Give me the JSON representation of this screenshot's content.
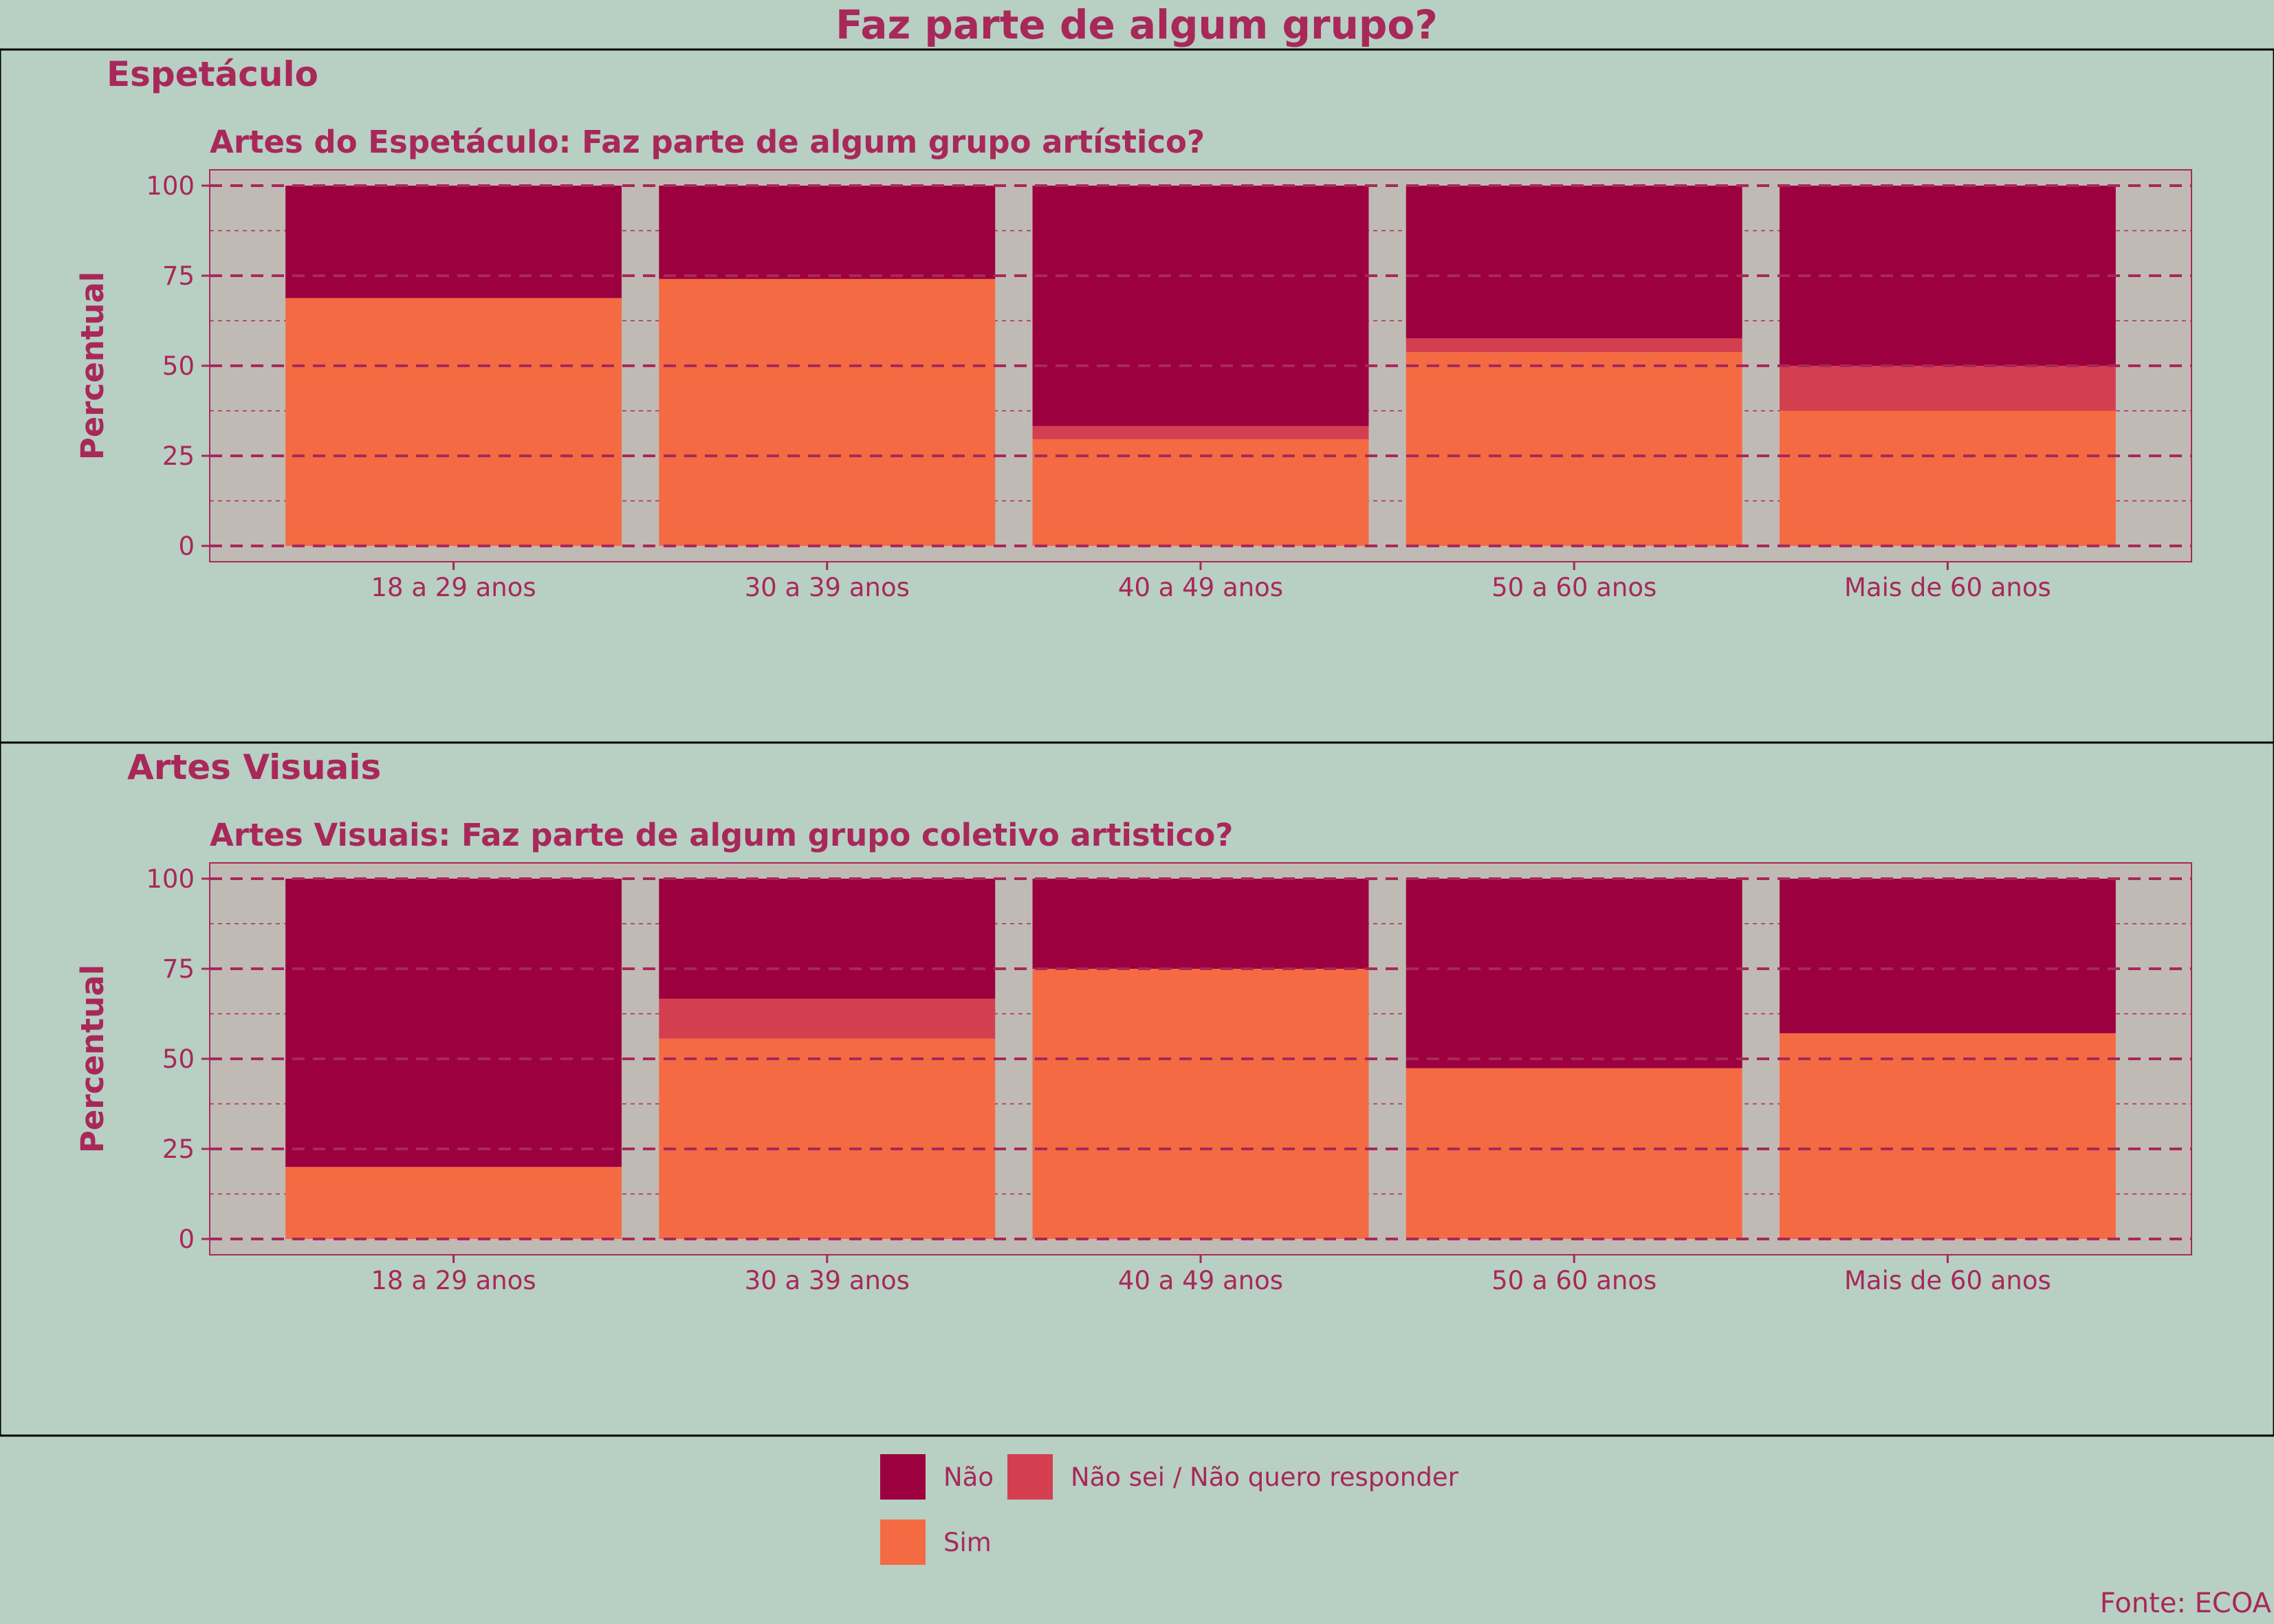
{
  "title": "Faz parte de algum grupo?",
  "source": "Fonte: ECOA",
  "colors": {
    "background": "#b8cfc4",
    "plot_background": "#c0bab5",
    "text": "#a8285a",
    "grid": "#a8285a",
    "nao": "#9c003e",
    "nao_sei": "#d43f50",
    "sim": "#f46b43"
  },
  "legend": {
    "position": "bottom",
    "items": [
      {
        "key": "nao",
        "label": "Não"
      },
      {
        "key": "nao_sei",
        "label": "Não sei / Não quero responder"
      },
      {
        "key": "sim",
        "label": "Sim"
      }
    ]
  },
  "chart_data": [
    {
      "type": "bar",
      "stacked": true,
      "panel_title": "Espetáculo",
      "title": "Artes do Espetáculo: Faz parte de algum grupo artístico?",
      "ylabel": "Percentual",
      "ylim": [
        0,
        100
      ],
      "yticks": [
        0,
        25,
        50,
        75,
        100
      ],
      "grid": true,
      "categories": [
        "18 a 29 anos",
        "30 a 39 anos",
        "40 a 49 anos",
        "50 a 60 anos",
        "Mais de 60 anos"
      ],
      "series": [
        {
          "key": "sim",
          "name": "Sim",
          "values": [
            68.8,
            74.1,
            29.6,
            53.8,
            37.5
          ]
        },
        {
          "key": "nao_sei",
          "name": "Não sei / Não quero responder",
          "values": [
            0,
            0,
            3.7,
            3.8,
            12.5
          ]
        },
        {
          "key": "nao",
          "name": "Não",
          "values": [
            31.2,
            25.9,
            66.7,
            42.4,
            50.0
          ]
        }
      ]
    },
    {
      "type": "bar",
      "stacked": true,
      "panel_title": "Artes Visuais",
      "title": "Artes Visuais: Faz parte de algum grupo coletivo artistico?",
      "ylabel": "Percentual",
      "ylim": [
        0,
        100
      ],
      "yticks": [
        0,
        25,
        50,
        75,
        100
      ],
      "grid": true,
      "categories": [
        "18 a 29 anos",
        "30 a 39 anos",
        "40 a 49 anos",
        "50 a 60 anos",
        "Mais de 60 anos"
      ],
      "series": [
        {
          "key": "sim",
          "name": "Sim",
          "values": [
            20.0,
            55.6,
            75.0,
            47.4,
            57.1
          ]
        },
        {
          "key": "nao_sei",
          "name": "Não sei / Não quero responder",
          "values": [
            0,
            11.1,
            0,
            0,
            0
          ]
        },
        {
          "key": "nao",
          "name": "Não",
          "values": [
            80.0,
            33.3,
            25.0,
            52.6,
            42.9
          ]
        }
      ]
    }
  ]
}
